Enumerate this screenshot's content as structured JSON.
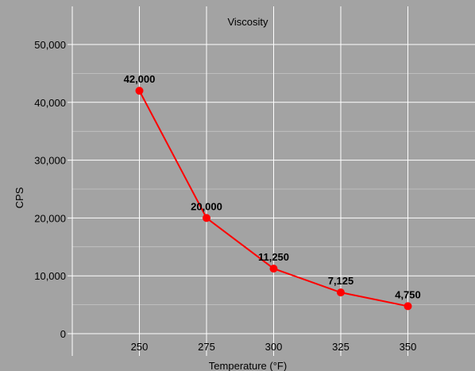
{
  "chart_data": {
    "type": "line",
    "title": "Viscosity",
    "xlabel": "Temperature (°F)",
    "ylabel": "CPS",
    "x": [
      250,
      275,
      300,
      325,
      350
    ],
    "series": [
      {
        "values": [
          42000,
          20000,
          11250,
          7125,
          4750
        ]
      }
    ],
    "data_labels": [
      "42,000",
      "20,000",
      "11,250",
      "7,125",
      "4,750"
    ],
    "x_ticks": [
      "250",
      "275",
      "300",
      "325",
      "350"
    ],
    "y_ticks": [
      "0",
      "10,000",
      "20,000",
      "30,000",
      "40,000",
      "50,000"
    ],
    "y_tick_values": [
      0,
      10000,
      20000,
      30000,
      40000,
      50000
    ],
    "xlim": [
      225,
      375
    ],
    "ylim": [
      0,
      50000
    ],
    "grid": true,
    "legend": "none",
    "colors": {
      "background": "#a3a3a3",
      "grid": "#ffffff",
      "line": "#ff0000"
    }
  }
}
